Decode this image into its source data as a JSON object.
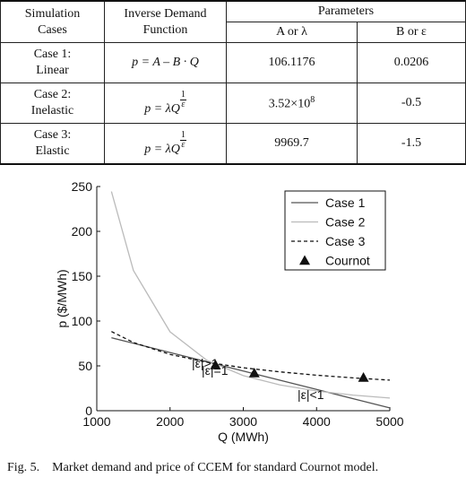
{
  "table": {
    "header": {
      "cases": "Simulation Cases",
      "function": "Inverse Demand Function",
      "parameters": "Parameters",
      "a": "A or λ",
      "b": "B or ε"
    },
    "rows": [
      {
        "case": "Case 1: Linear",
        "formula": {
          "base": "p = A – B · Q"
        },
        "a": {
          "text": "106.1176"
        },
        "b": "0.0206"
      },
      {
        "case": "Case 2: Inelastic",
        "formula": {
          "base": "p = λQ",
          "num": "1",
          "den": "ε"
        },
        "a": {
          "text": "3.52×10",
          "sup": "8"
        },
        "b": "-0.5"
      },
      {
        "case": "Case 3: Elastic",
        "formula": {
          "base": "p = λQ",
          "num": "1",
          "den": "ε"
        },
        "a": {
          "text": "9969.7"
        },
        "b": "-1.5"
      }
    ]
  },
  "chart_data": {
    "type": "line",
    "xlabel": "Q (MWh)",
    "ylabel": "p ($/MWh)",
    "x": [
      1200,
      1500,
      2000,
      2500,
      3000,
      3500,
      4000,
      4500,
      5000
    ],
    "series": [
      {
        "name": "Case 1",
        "color": "#555555",
        "style": "solid",
        "values": [
          81.4,
          75.2,
          64.9,
          54.6,
          44.3,
          34.0,
          23.7,
          13.4,
          3.1
        ]
      },
      {
        "name": "Case 2",
        "color": "#bbbbbb",
        "style": "solid",
        "values": [
          244.4,
          156.4,
          88,
          56.3,
          39.1,
          28.7,
          22,
          17.4,
          14.1
        ]
      },
      {
        "name": "Case 3",
        "color": "#111111",
        "style": "dashed",
        "values": [
          88.3,
          76.1,
          62.8,
          54.1,
          47.9,
          43.3,
          39.6,
          36.6,
          34.1
        ]
      },
      {
        "name": "Cournot",
        "color": "#111111",
        "style": "marker",
        "x": [
          2620,
          3150,
          4640
        ],
        "values": [
          51,
          42,
          37
        ]
      }
    ],
    "annotations": [
      "|ε|>1",
      "|ε|=1",
      "|ε|<1"
    ],
    "xlim": [
      1000,
      5000
    ],
    "xticks": [
      1000,
      2000,
      3000,
      4000,
      5000
    ],
    "ylim": [
      0,
      250
    ],
    "yticks": [
      0,
      50,
      100,
      150,
      200,
      250
    ]
  },
  "caption": "Fig. 5.    Market demand and price of CCEM for standard Cournot model."
}
